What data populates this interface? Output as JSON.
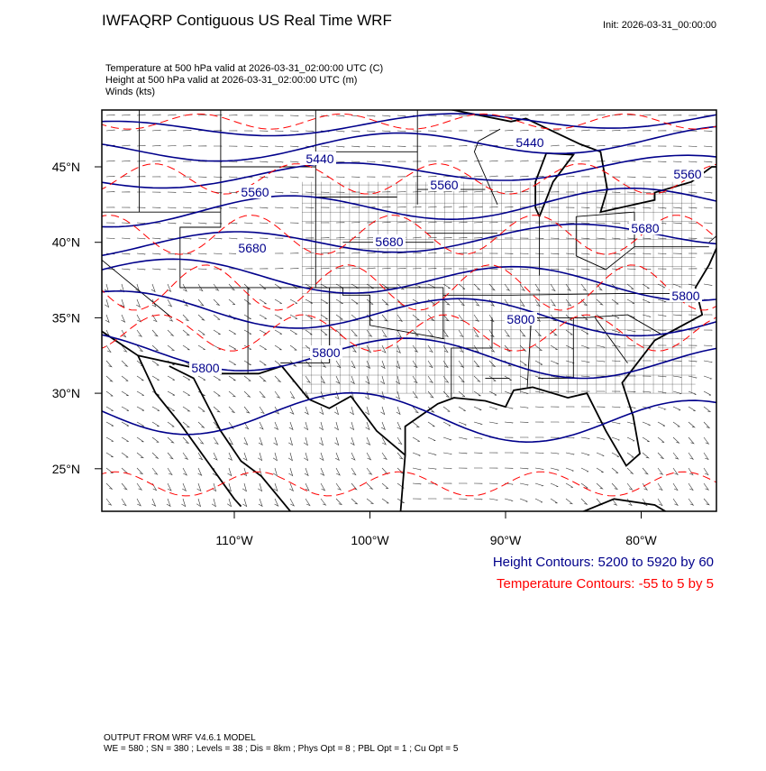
{
  "header": {
    "title": "IWFAQRP Contiguous US Real Time WRF",
    "init": "Init: 2026-03-31_00:00:00"
  },
  "fields": [
    "Temperature at 500 hPa valid at 2026-03-31_02:00:00 UTC   (C)",
    "Height at 500 hPa valid at 2026-03-31_02:00:00 UTC   (m)",
    "Winds   (kts)"
  ],
  "map": {
    "lat_labels": [
      "45°N",
      "40°N",
      "35°N",
      "30°N",
      "25°N"
    ],
    "lon_labels": [
      "110°W",
      "100°W",
      "90°W",
      "80°W"
    ],
    "height_contour_labels": [
      "5440",
      "5440",
      "5560",
      "5560",
      "5560",
      "5680",
      "5680",
      "5680",
      "5800",
      "5800",
      "5800",
      "5800"
    ]
  },
  "legend": {
    "height": "Height Contours: 5200 to 5920 by 60",
    "temperature": "Temperature Contours: -55 to 5 by 5"
  },
  "footer": {
    "model": "OUTPUT FROM WRF V4.6.1 MODEL",
    "settings": "WE = 580 ; SN = 380 ; Levels = 38 ; Dis = 8km ; Phys Opt = 8 ; PBL Opt = 1 ; Cu Opt = 5"
  }
}
